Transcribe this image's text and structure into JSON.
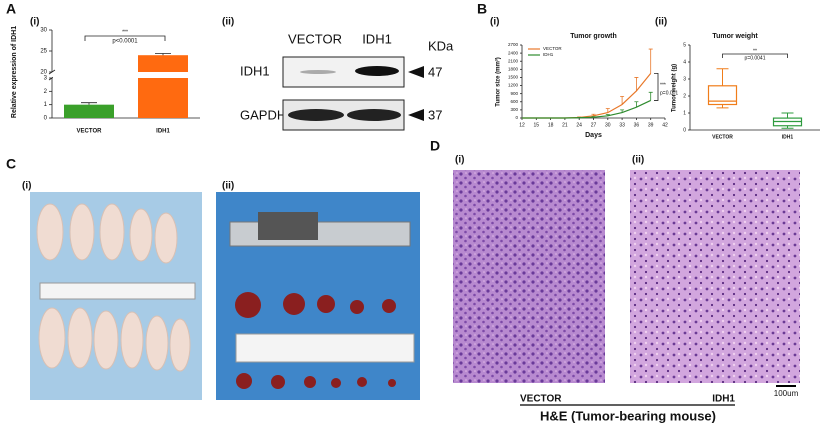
{
  "panels": {
    "A": {
      "label": "A",
      "i": "(i)",
      "ii": "(ii)"
    },
    "B": {
      "label": "B",
      "i": "(i)",
      "ii": "(ii)"
    },
    "C": {
      "label": "C",
      "i": "(i)",
      "ii": "(ii)"
    },
    "D": {
      "label": "D",
      "i": "(i)",
      "ii": "(ii)"
    }
  },
  "chart_data": [
    {
      "type": "bar",
      "y_label": "Relative expression of IDH1",
      "categories": [
        "VECTOR",
        "IDH1"
      ],
      "values": [
        1,
        24
      ],
      "errors": [
        0.15,
        0.4
      ],
      "colors": [
        "#3aa02a",
        "#ff6a10"
      ],
      "ylim": [
        0,
        30
      ],
      "ybreak": [
        3,
        20
      ],
      "yticks": [
        0,
        1,
        2,
        3,
        20,
        25,
        30
      ],
      "annotations": [
        "***",
        "p<0.0001"
      ]
    },
    {
      "type": "line",
      "title": "Tumor growth",
      "x_label": "Days",
      "y_label": "Tumor size (mm³)",
      "x": [
        12,
        15,
        18,
        21,
        24,
        27,
        30,
        33,
        36,
        39
      ],
      "series": [
        {
          "name": "VECTOR",
          "color": "#e8782a",
          "values": [
            0,
            0,
            0,
            0,
            20,
            80,
            200,
            500,
            1000,
            1650
          ],
          "errors": [
            0,
            0,
            0,
            0,
            20,
            60,
            150,
            300,
            500,
            900
          ]
        },
        {
          "name": "IDH1",
          "color": "#2e8b2e",
          "values": [
            0,
            0,
            0,
            0,
            10,
            30,
            80,
            200,
            400,
            650
          ],
          "errors": [
            0,
            0,
            0,
            0,
            10,
            20,
            50,
            100,
            200,
            300
          ]
        }
      ],
      "xlim": [
        12,
        42
      ],
      "xticks": [
        12,
        15,
        18,
        21,
        24,
        27,
        30,
        33,
        36,
        39,
        42
      ],
      "ylim": [
        0,
        2700
      ],
      "yticks": [
        0,
        300,
        600,
        900,
        1200,
        1500,
        1800,
        2100,
        2400,
        2700
      ],
      "annotations": [
        "***",
        "p=0.001"
      ]
    },
    {
      "type": "box",
      "title": "Tumor weight",
      "y_label": "Tumor weight (g)",
      "categories": [
        "VECTOR",
        "IDH1"
      ],
      "colors": [
        "#f07d1a",
        "#2e9b3e"
      ],
      "min": [
        1.3,
        0.1
      ],
      "q1": [
        1.5,
        0.25
      ],
      "median": [
        1.7,
        0.5
      ],
      "q3": [
        2.6,
        0.7
      ],
      "max": [
        3.6,
        1.0
      ],
      "ylim": [
        0,
        5
      ],
      "yticks": [
        0,
        1,
        2,
        3,
        4,
        5
      ],
      "annotations": [
        "**",
        "p=0.0041"
      ]
    }
  ],
  "blot": {
    "lanes": [
      "VECTOR",
      "IDH1"
    ],
    "unit": "KDa",
    "rows": [
      {
        "protein": "IDH1",
        "size": 47
      },
      {
        "protein": "GAPDH",
        "size": 37
      }
    ]
  },
  "histology": {
    "scale_bar": "100um",
    "groups": [
      "VECTOR",
      "IDH1"
    ],
    "caption": "H&E (Tumor-bearing mouse)"
  }
}
